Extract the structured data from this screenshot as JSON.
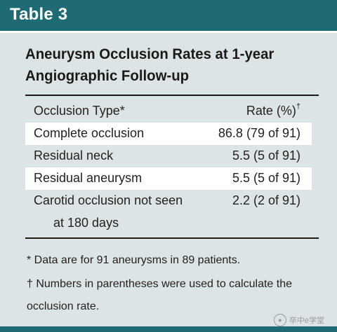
{
  "header": {
    "label": "Table 3"
  },
  "table": {
    "title_line1": "Aneurysm Occlusion Rates at 1-year",
    "title_line2": "Angiographic Follow-up",
    "columns": {
      "type": "Occlusion Type*",
      "rate": "Rate (%)",
      "rate_mark": "†"
    },
    "rows": [
      {
        "type": "Complete occlusion",
        "rate": "86.8 (79 of 91)"
      },
      {
        "type": "Residual neck",
        "rate": "5.5 (5 of 91)"
      },
      {
        "type": "Residual aneurysm",
        "rate": "5.5 (5 of 91)"
      },
      {
        "type": "Carotid occlusion not seen",
        "type_cont": "at 180 days",
        "rate": "2.2 (2 of 91)"
      }
    ]
  },
  "footnotes": {
    "note1": "* Data are for 91 aneurysms in 89 patients.",
    "note2_line1": "† Numbers in parentheses were used to calculate the",
    "note2_line2": "occlusion rate."
  },
  "watermark": {
    "icon": "wechat-icon",
    "text": "卒中e学堂"
  }
}
